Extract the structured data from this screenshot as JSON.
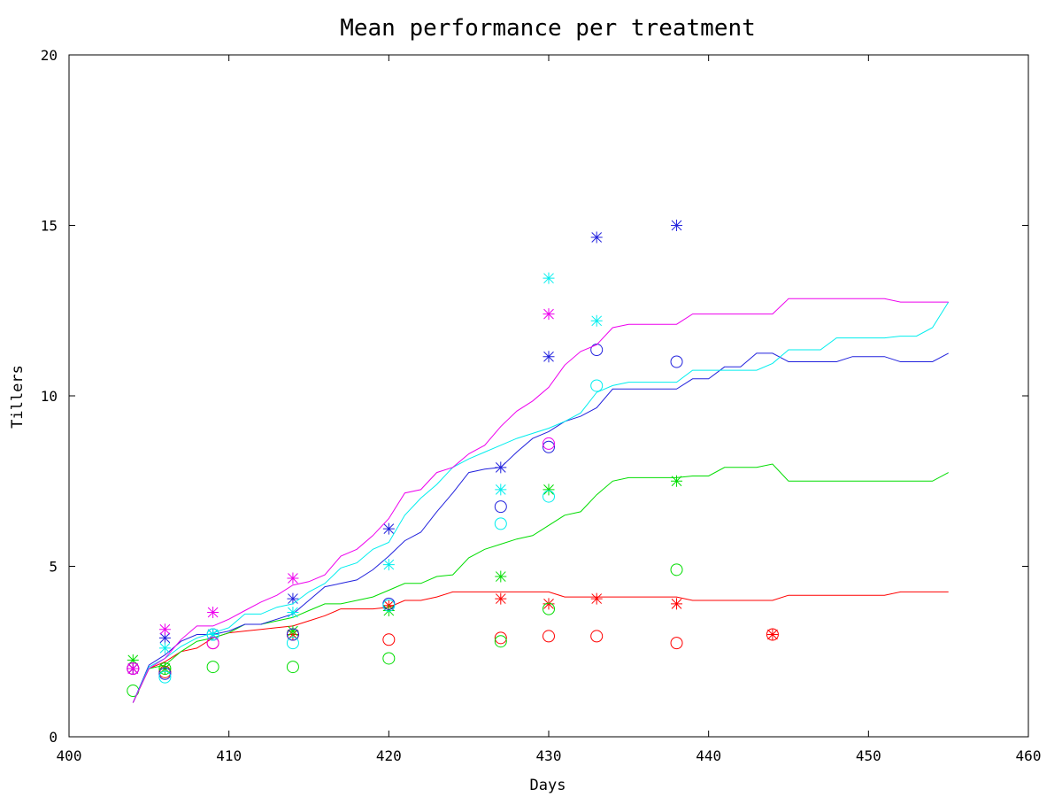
{
  "chart_data": {
    "type": "line",
    "title": "Mean performance per treatment",
    "xlabel": "Days",
    "ylabel": "Tillers",
    "xlim": [
      400,
      460
    ],
    "ylim": [
      0,
      20
    ],
    "xticks": [
      400,
      410,
      420,
      430,
      440,
      450,
      460
    ],
    "yticks": [
      0,
      5,
      10,
      15,
      20
    ],
    "grid": false,
    "legend": "none",
    "series": [
      {
        "color": "#ff0000",
        "line": {
          "x": [
            404,
            405,
            406,
            407,
            408,
            409,
            410,
            411,
            412,
            413,
            414,
            415,
            416,
            417,
            418,
            419,
            420,
            421,
            422,
            423,
            424,
            425,
            426,
            427,
            428,
            429,
            430,
            431,
            432,
            433,
            434,
            435,
            436,
            437,
            438,
            439,
            440,
            441,
            442,
            443,
            444,
            445,
            446,
            447,
            448,
            449,
            450,
            451,
            452,
            453,
            454,
            455
          ],
          "y": [
            1.0,
            2.0,
            2.2,
            2.5,
            2.6,
            2.9,
            3.05,
            3.1,
            3.15,
            3.2,
            3.25,
            3.4,
            3.55,
            3.75,
            3.75,
            3.75,
            3.8,
            4.0,
            4.0,
            4.1,
            4.25,
            4.25,
            4.25,
            4.25,
            4.25,
            4.25,
            4.25,
            4.1,
            4.1,
            4.1,
            4.1,
            4.1,
            4.1,
            4.1,
            4.1,
            4.0,
            4.0,
            4.0,
            4.0,
            4.0,
            4.0,
            4.15,
            4.15,
            4.15,
            4.15,
            4.15,
            4.15,
            4.15,
            4.25,
            4.25,
            4.25,
            4.25
          ]
        },
        "circles": {
          "x": [
            404,
            406,
            409,
            414,
            420,
            427,
            430,
            433,
            438,
            444
          ],
          "y": [
            2.0,
            1.9,
            2.75,
            3.0,
            2.85,
            2.9,
            2.95,
            2.95,
            2.75,
            3.0
          ]
        },
        "stars": {
          "x": [
            404,
            406,
            409,
            414,
            420,
            427,
            430,
            433,
            438,
            444
          ],
          "y": [
            2.0,
            2.0,
            3.0,
            3.0,
            3.85,
            4.05,
            3.9,
            4.05,
            3.9,
            3.0
          ]
        }
      },
      {
        "color": "#00dd00",
        "line": {
          "x": [
            404,
            405,
            406,
            407,
            408,
            409,
            410,
            411,
            412,
            413,
            414,
            415,
            416,
            417,
            418,
            419,
            420,
            421,
            422,
            423,
            424,
            425,
            426,
            427,
            428,
            429,
            430,
            431,
            432,
            433,
            434,
            435,
            436,
            437,
            438,
            439,
            440,
            441,
            442,
            443,
            444,
            445,
            446,
            447,
            448,
            449,
            450,
            451,
            452,
            453,
            454,
            455
          ],
          "y": [
            1.0,
            2.0,
            2.1,
            2.5,
            2.8,
            2.9,
            3.05,
            3.3,
            3.3,
            3.4,
            3.5,
            3.7,
            3.9,
            3.9,
            4.0,
            4.1,
            4.3,
            4.5,
            4.5,
            4.7,
            4.75,
            5.25,
            5.5,
            5.65,
            5.8,
            5.9,
            6.2,
            6.5,
            6.6,
            7.1,
            7.5,
            7.6,
            7.6,
            7.6,
            7.6,
            7.65,
            7.65,
            7.9,
            7.9,
            7.9,
            8.0,
            7.5,
            7.5,
            7.5,
            7.5,
            7.5,
            7.5,
            7.5,
            7.5,
            7.5,
            7.5,
            7.75
          ]
        },
        "circles": {
          "x": [
            404,
            406,
            409,
            414,
            420,
            427,
            430,
            438
          ],
          "y": [
            1.35,
            2.0,
            2.05,
            2.05,
            2.3,
            2.8,
            3.75,
            4.9
          ]
        },
        "stars": {
          "x": [
            404,
            406,
            414,
            420,
            427,
            430,
            438
          ],
          "y": [
            2.25,
            2.0,
            3.1,
            3.7,
            4.7,
            7.25,
            7.5
          ]
        }
      },
      {
        "color": "#2222dd",
        "line": {
          "x": [
            404,
            405,
            406,
            407,
            408,
            409,
            410,
            411,
            412,
            413,
            414,
            415,
            416,
            417,
            418,
            419,
            420,
            421,
            422,
            423,
            424,
            425,
            426,
            427,
            428,
            429,
            430,
            431,
            432,
            433,
            434,
            435,
            436,
            437,
            438,
            439,
            440,
            441,
            442,
            443,
            444,
            445,
            446,
            447,
            448,
            449,
            450,
            451,
            452,
            453,
            454,
            455
          ],
          "y": [
            1.0,
            2.1,
            2.4,
            2.8,
            3.0,
            3.0,
            3.1,
            3.3,
            3.3,
            3.45,
            3.6,
            4.0,
            4.4,
            4.5,
            4.6,
            4.9,
            5.3,
            5.75,
            6.0,
            6.6,
            7.15,
            7.75,
            7.85,
            7.9,
            8.35,
            8.75,
            8.95,
            9.25,
            9.4,
            9.65,
            10.2,
            10.2,
            10.2,
            10.2,
            10.2,
            10.5,
            10.5,
            10.85,
            10.85,
            11.25,
            11.25,
            11.0,
            11.0,
            11.0,
            11.0,
            11.15,
            11.15,
            11.15,
            11.0,
            11.0,
            11.0,
            11.25
          ]
        },
        "circles": {
          "x": [
            404,
            406,
            409,
            414,
            420,
            427,
            430,
            433,
            438
          ],
          "y": [
            2.0,
            1.85,
            3.0,
            3.0,
            3.9,
            6.75,
            8.5,
            11.35,
            11.0
          ]
        },
        "stars": {
          "x": [
            404,
            406,
            409,
            414,
            420,
            427,
            430,
            433,
            438
          ],
          "y": [
            2.0,
            2.9,
            3.0,
            4.05,
            6.1,
            7.9,
            11.15,
            14.65,
            15.0
          ]
        }
      },
      {
        "color": "#00eeee",
        "line": {
          "x": [
            404,
            405,
            406,
            407,
            408,
            409,
            410,
            411,
            412,
            413,
            414,
            415,
            416,
            417,
            418,
            419,
            420,
            421,
            422,
            423,
            424,
            425,
            426,
            427,
            428,
            429,
            430,
            431,
            432,
            433,
            434,
            435,
            436,
            437,
            438,
            439,
            440,
            441,
            442,
            443,
            444,
            445,
            446,
            447,
            448,
            449,
            450,
            451,
            452,
            453,
            454,
            455
          ],
          "y": [
            1.0,
            2.05,
            2.3,
            2.65,
            2.9,
            3.05,
            3.2,
            3.6,
            3.6,
            3.8,
            3.9,
            4.25,
            4.5,
            4.95,
            5.1,
            5.5,
            5.7,
            6.5,
            7.0,
            7.4,
            7.9,
            8.15,
            8.35,
            8.55,
            8.75,
            8.9,
            9.05,
            9.25,
            9.5,
            10.1,
            10.3,
            10.4,
            10.4,
            10.4,
            10.4,
            10.75,
            10.75,
            10.75,
            10.75,
            10.75,
            10.95,
            11.35,
            11.35,
            11.35,
            11.7,
            11.7,
            11.7,
            11.7,
            11.75,
            11.75,
            12.0,
            12.75
          ]
        },
        "circles": {
          "x": [
            406,
            409,
            414,
            420,
            427,
            430,
            433
          ],
          "y": [
            1.75,
            3.0,
            2.75,
            3.85,
            6.25,
            7.05,
            10.3
          ]
        },
        "stars": {
          "x": [
            406,
            409,
            414,
            420,
            427,
            430,
            433
          ],
          "y": [
            2.6,
            3.0,
            3.65,
            5.05,
            7.25,
            13.45,
            12.2
          ]
        }
      },
      {
        "color": "#ee00ee",
        "line": {
          "x": [
            404,
            405,
            406,
            407,
            408,
            409,
            410,
            411,
            412,
            413,
            414,
            415,
            416,
            417,
            418,
            419,
            420,
            421,
            422,
            423,
            424,
            425,
            426,
            427,
            428,
            429,
            430,
            431,
            432,
            433,
            434,
            435,
            436,
            437,
            438,
            439,
            440,
            441,
            442,
            443,
            444,
            445,
            446,
            447,
            448,
            449,
            450,
            451,
            452,
            453,
            454,
            455
          ],
          "y": [
            1.0,
            2.0,
            2.3,
            2.85,
            3.25,
            3.25,
            3.45,
            3.7,
            3.95,
            4.15,
            4.45,
            4.55,
            4.75,
            5.3,
            5.5,
            5.9,
            6.4,
            7.15,
            7.25,
            7.75,
            7.9,
            8.3,
            8.55,
            9.1,
            9.55,
            9.85,
            10.25,
            10.9,
            11.3,
            11.5,
            12.0,
            12.1,
            12.1,
            12.1,
            12.1,
            12.4,
            12.4,
            12.4,
            12.4,
            12.4,
            12.4,
            12.85,
            12.85,
            12.85,
            12.85,
            12.85,
            12.85,
            12.85,
            12.75,
            12.75,
            12.75,
            12.75
          ]
        },
        "circles": {
          "x": [
            404,
            409,
            430
          ],
          "y": [
            2.0,
            2.75,
            8.6
          ]
        },
        "stars": {
          "x": [
            404,
            406,
            409,
            414,
            430
          ],
          "y": [
            2.0,
            3.15,
            3.65,
            4.65,
            12.4
          ]
        }
      }
    ]
  }
}
